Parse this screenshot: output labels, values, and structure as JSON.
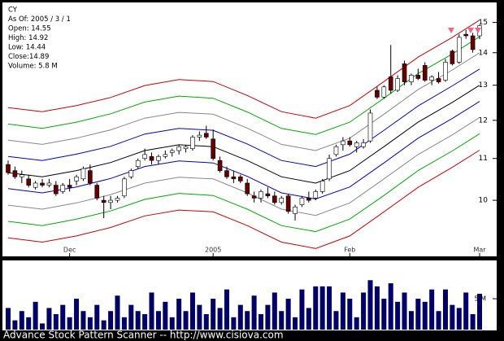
{
  "chart_data": [
    {
      "type": "candlestick",
      "info": [
        "CY",
        "As Of: 2005 / 3 / 1",
        "Open: 14.55",
        "High: 14.92",
        "Low: 14.44",
        "Close:14.89",
        "Volume: 5.8 M"
      ],
      "categories": [
        null,
        null,
        null,
        null,
        null,
        null,
        null,
        null,
        null,
        "Dec",
        null,
        null,
        null,
        null,
        null,
        null,
        null,
        null,
        null,
        null,
        null,
        null,
        null,
        null,
        null,
        null,
        null,
        null,
        null,
        null,
        "2005",
        null,
        null,
        null,
        null,
        null,
        null,
        null,
        null,
        null,
        null,
        null,
        null,
        null,
        null,
        null,
        null,
        null,
        null,
        null,
        "Feb",
        null,
        null,
        null,
        null,
        null,
        null,
        null,
        null,
        null,
        null,
        null,
        null,
        null,
        null,
        null,
        null,
        null,
        null,
        "Mar"
      ],
      "open": [
        10.85,
        10.7,
        10.55,
        10.5,
        10.3,
        10.4,
        10.35,
        10.35,
        10.2,
        10.35,
        10.45,
        10.5,
        10.7,
        10.35,
        10.0,
        9.95,
        10.0,
        10.1,
        10.55,
        10.8,
        11.0,
        11.05,
        10.95,
        11.05,
        11.15,
        11.2,
        11.25,
        11.25,
        11.55,
        11.65,
        11.5,
        10.95,
        10.7,
        10.55,
        10.55,
        10.4,
        10.1,
        10.05,
        10.15,
        10.1,
        9.95,
        10.1,
        9.7,
        9.9,
        10.05,
        10.05,
        10.2,
        10.5,
        11.1,
        11.35,
        11.45,
        11.3,
        11.3,
        11.45,
        12.85,
        12.65,
        13.25,
        12.85,
        13.65,
        13.1,
        13.3,
        13.6,
        13.15,
        13.2,
        13.15,
        14.05,
        13.7,
        14.6,
        14.55,
        14.55
      ],
      "high": [
        10.95,
        10.8,
        10.7,
        10.6,
        10.45,
        10.5,
        10.5,
        10.45,
        10.4,
        10.5,
        10.6,
        10.8,
        10.85,
        10.4,
        10.1,
        10.1,
        10.1,
        10.55,
        10.75,
        11.0,
        11.25,
        11.15,
        11.1,
        11.2,
        11.25,
        11.35,
        11.35,
        11.6,
        11.7,
        11.85,
        11.75,
        11.05,
        10.8,
        10.7,
        10.6,
        10.5,
        10.2,
        10.25,
        10.3,
        10.2,
        10.1,
        10.15,
        9.9,
        10.1,
        10.2,
        10.25,
        10.5,
        11.1,
        11.35,
        11.55,
        11.55,
        11.45,
        11.5,
        12.3,
        12.95,
        13.0,
        14.25,
        13.3,
        13.75,
        13.35,
        13.5,
        13.7,
        13.3,
        13.4,
        13.8,
        14.1,
        14.6,
        14.75,
        14.65,
        14.92
      ],
      "low": [
        10.6,
        10.5,
        10.4,
        10.3,
        10.25,
        10.3,
        10.3,
        10.1,
        10.15,
        10.2,
        10.35,
        10.45,
        10.35,
        10.0,
        9.6,
        9.8,
        9.95,
        10.05,
        10.5,
        10.75,
        10.95,
        10.85,
        10.85,
        11.0,
        11.05,
        11.1,
        11.15,
        11.2,
        11.45,
        11.5,
        10.95,
        10.65,
        10.5,
        10.4,
        10.4,
        10.1,
        9.95,
        9.95,
        10.05,
        9.9,
        9.9,
        9.7,
        9.55,
        9.85,
        9.95,
        10.0,
        10.15,
        10.45,
        11.05,
        11.2,
        11.3,
        11.15,
        11.25,
        11.4,
        12.6,
        12.6,
        12.75,
        12.8,
        13.0,
        13.0,
        13.15,
        13.1,
        13.0,
        13.05,
        13.1,
        13.6,
        13.65,
        14.45,
        14.0,
        14.44
      ],
      "close": [
        10.65,
        10.55,
        10.6,
        10.35,
        10.4,
        10.35,
        10.4,
        10.15,
        10.35,
        10.3,
        10.55,
        10.75,
        10.4,
        10.05,
        9.95,
        10.0,
        10.05,
        10.5,
        10.7,
        10.95,
        11.1,
        10.95,
        11.05,
        11.1,
        11.2,
        11.3,
        11.3,
        11.55,
        11.6,
        11.55,
        11.0,
        10.7,
        10.55,
        10.5,
        10.45,
        10.15,
        10.05,
        10.2,
        10.1,
        9.95,
        10.05,
        9.75,
        9.85,
        10.05,
        10.0,
        10.2,
        10.45,
        11.0,
        11.3,
        11.45,
        11.35,
        11.4,
        11.4,
        12.2,
        12.65,
        12.95,
        12.85,
        13.2,
        13.1,
        13.3,
        13.2,
        13.15,
        13.25,
        13.1,
        13.7,
        13.65,
        14.5,
        14.55,
        14.1,
        14.89
      ],
      "up_color": "#ffffff",
      "down_color": "#660000",
      "band_x": [
        0,
        5,
        10,
        15,
        20,
        25,
        30,
        35,
        40,
        45,
        50,
        55,
        60,
        65,
        69
      ],
      "bands": [
        {
          "color": "#cc0000",
          "values": [
            12.35,
            12.24,
            12.41,
            12.64,
            12.99,
            13.17,
            13.11,
            12.7,
            12.24,
            12.06,
            12.41,
            13.11,
            13.86,
            14.5,
            15.08
          ]
        },
        {
          "color": "#00aa00",
          "values": [
            11.9,
            11.78,
            11.95,
            12.18,
            12.51,
            12.68,
            12.62,
            12.23,
            11.78,
            11.62,
            11.95,
            12.62,
            13.35,
            13.96,
            14.52
          ]
        },
        {
          "color": "#888888",
          "values": [
            11.47,
            11.36,
            11.52,
            11.74,
            12.06,
            12.22,
            12.17,
            11.79,
            11.36,
            11.2,
            11.52,
            12.17,
            12.87,
            13.46,
            14.0
          ]
        },
        {
          "color": "#0000cc",
          "values": [
            11.05,
            10.95,
            11.11,
            11.31,
            11.63,
            11.78,
            11.73,
            11.37,
            10.95,
            10.8,
            11.11,
            11.73,
            12.4,
            12.98,
            13.49
          ]
        },
        {
          "color": "#000000",
          "values": [
            10.65,
            10.55,
            10.7,
            10.9,
            11.2,
            11.35,
            11.3,
            10.95,
            10.55,
            10.4,
            10.7,
            11.3,
            11.95,
            12.5,
            13.0
          ]
        },
        {
          "color": "#0000cc",
          "values": [
            10.27,
            10.17,
            10.31,
            10.51,
            10.8,
            10.94,
            10.89,
            10.56,
            10.17,
            10.03,
            10.31,
            10.89,
            11.52,
            12.05,
            12.53
          ]
        },
        {
          "color": "#888888",
          "values": [
            9.89,
            9.8,
            9.94,
            10.13,
            10.4,
            10.54,
            10.5,
            10.17,
            9.8,
            9.66,
            9.94,
            10.5,
            11.1,
            11.61,
            12.08
          ]
        },
        {
          "color": "#00aa00",
          "values": [
            9.53,
            9.44,
            9.58,
            9.76,
            10.02,
            10.16,
            10.11,
            9.8,
            9.44,
            9.31,
            9.58,
            10.11,
            10.7,
            11.19,
            11.64
          ]
        },
        {
          "color": "#cc0000",
          "values": [
            9.18,
            9.09,
            9.22,
            9.4,
            9.65,
            9.78,
            9.74,
            9.44,
            9.09,
            8.96,
            9.22,
            9.74,
            10.3,
            10.78,
            11.21
          ]
        }
      ],
      "ylim": [
        8.8,
        15.7
      ],
      "yticks": [
        10,
        11,
        12,
        13,
        14,
        15
      ],
      "log_scale": true,
      "grid": false
    },
    {
      "type": "bar",
      "values": [
        3.5,
        1.5,
        3,
        2,
        4.5,
        1,
        3.5,
        2.5,
        4,
        2,
        5,
        3,
        2,
        4,
        1.5,
        3,
        5.5,
        2,
        4,
        3,
        2.5,
        6,
        3,
        4.5,
        2,
        5,
        3,
        6,
        4,
        2.5,
        5,
        3.5,
        6.5,
        2,
        4,
        3,
        5.5,
        2.5,
        4,
        6,
        3,
        5,
        2,
        6.5,
        3.5,
        7,
        7,
        7,
        3,
        6,
        5,
        2,
        6,
        8,
        7,
        5,
        7.5,
        4.5,
        6,
        3,
        5,
        4.5,
        6.5,
        3,
        6.5,
        4,
        3.5,
        6,
        2.5,
        5.8
      ],
      "color": "#000066",
      "ylim": [
        0,
        11.2
      ],
      "yticks": [
        {
          "value": 5,
          "label": "5 M"
        }
      ],
      "grid": false
    }
  ],
  "footer": "Advance Stock Pattern Scanner -- http://www.cisiova.com"
}
